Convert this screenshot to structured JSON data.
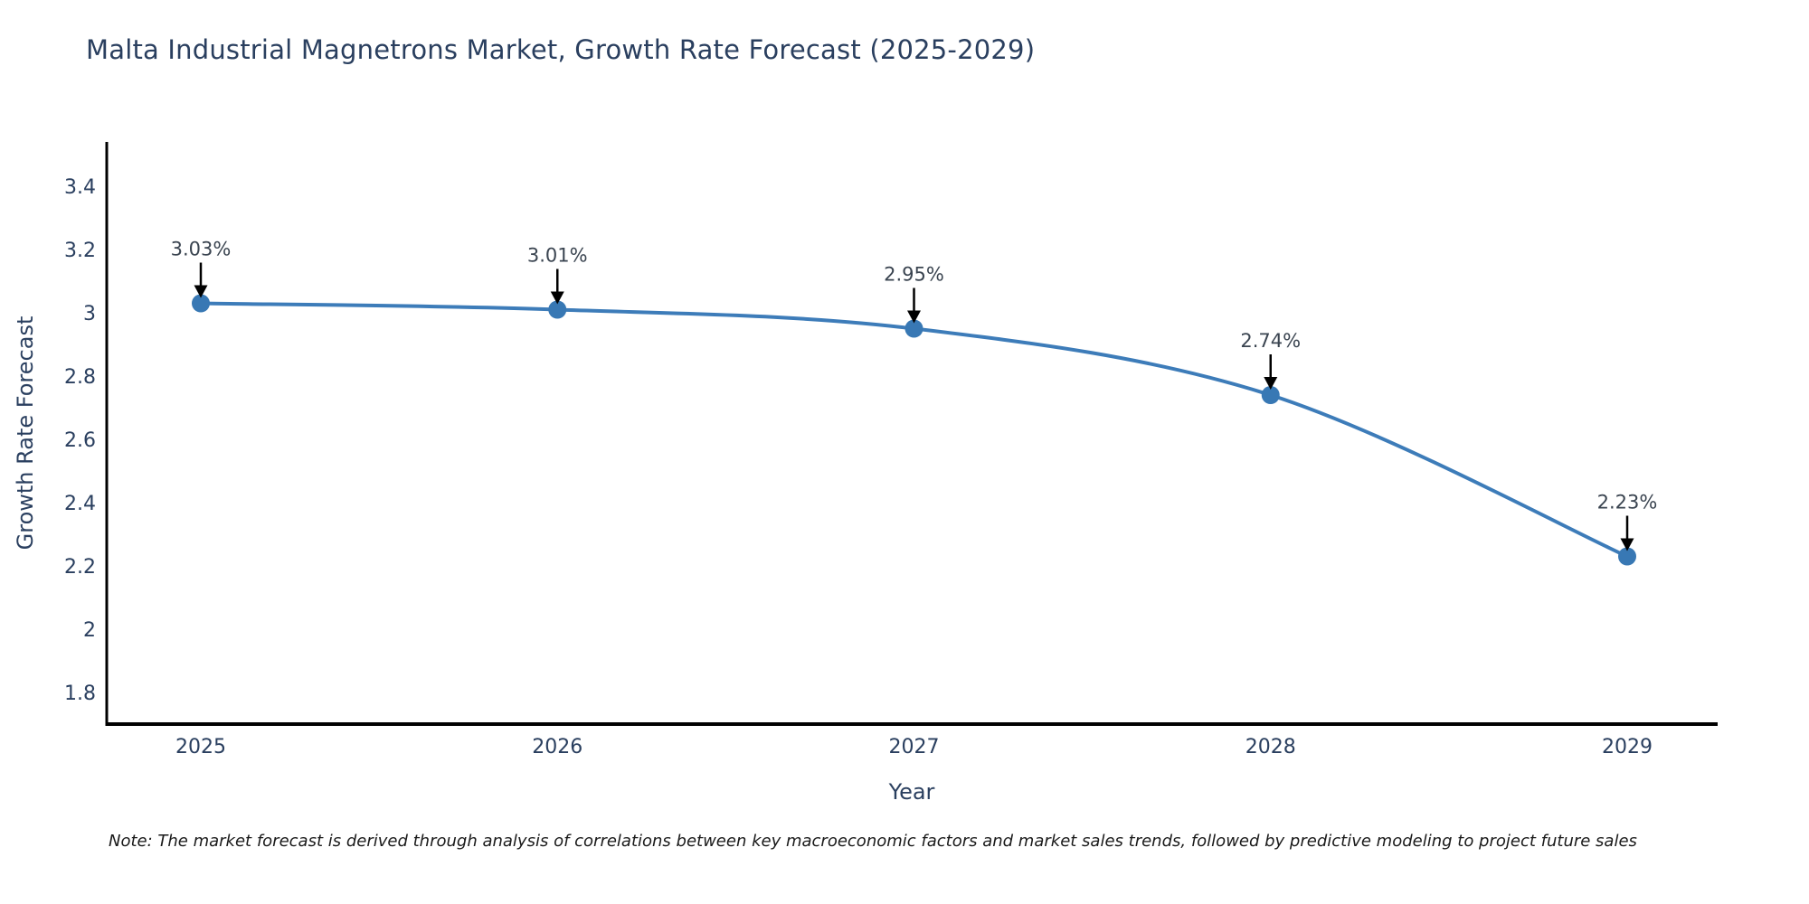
{
  "chart_data": {
    "type": "line",
    "title": "Malta Industrial Magnetrons Market, Growth Rate Forecast (2025-2029)",
    "xlabel": "Year",
    "ylabel": "Growth Rate Forecast",
    "x": [
      "2025",
      "2026",
      "2027",
      "2028",
      "2029"
    ],
    "series": [
      {
        "name": "Growth Rate Forecast",
        "values": [
          3.03,
          3.01,
          2.95,
          2.74,
          2.23
        ]
      }
    ],
    "point_labels": [
      "3.03%",
      "3.01%",
      "2.95%",
      "2.74%",
      "2.23%"
    ],
    "y_ticks": [
      "3.4",
      "3.2",
      "3",
      "2.8",
      "2.6",
      "2.4",
      "2.2",
      "2",
      "1.8"
    ],
    "ylim": [
      1.7,
      3.54
    ],
    "grid": false,
    "legend_position": "none",
    "line_style": "spline",
    "note": "Note: The market forecast is derived through analysis of correlations between key macroeconomic factors and market sales trends, followed by predictive modeling to project future sales"
  },
  "colors": {
    "line": "#3d7cb9",
    "marker": "#3878b4",
    "title_text": "#2a3f5f",
    "axis_text": "#2a3f5f",
    "annotation_text": "#3a4450",
    "arrow": "#000000",
    "axis_line": "#000000",
    "note_text": "#1a1a1a",
    "background": "#ffffff"
  }
}
